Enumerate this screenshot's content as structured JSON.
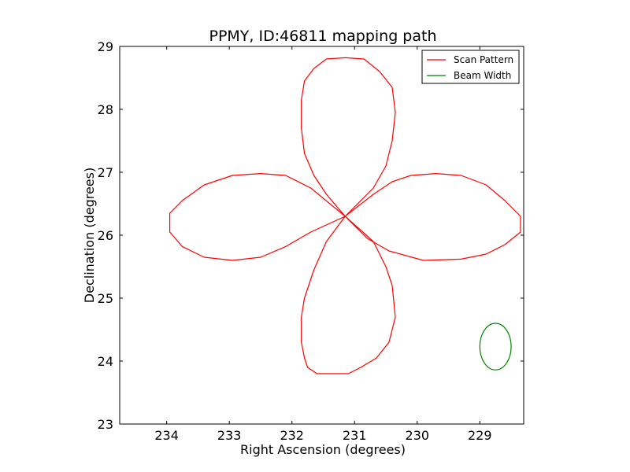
{
  "chart_data": {
    "type": "line",
    "title": "PPMY, ID:46811 mapping path",
    "xlabel": "Right Ascension (degrees)",
    "ylabel": "Declination (degrees)",
    "xlim": [
      234.75,
      228.3
    ],
    "ylim": [
      23,
      29
    ],
    "x_ticks": [
      234,
      233,
      232,
      231,
      230,
      229
    ],
    "y_ticks": [
      23,
      24,
      25,
      26,
      27,
      28,
      29
    ],
    "x_tick_labels": [
      "234",
      "233",
      "232",
      "231",
      "230",
      "229"
    ],
    "y_tick_labels": [
      "23",
      "24",
      "25",
      "26",
      "27",
      "28",
      "29"
    ],
    "grid": false,
    "legend_position": "top-right",
    "series": [
      {
        "name": "Scan Pattern",
        "color": "#ff0000",
        "x": [
          231.15,
          231.45,
          231.65,
          231.8,
          231.85,
          231.85,
          231.8,
          231.75,
          231.6,
          231.3,
          231.1,
          230.9,
          230.65,
          230.45,
          230.35,
          230.4,
          230.5,
          230.7,
          231.15,
          230.7,
          230.4,
          230.1,
          229.7,
          229.3,
          228.9,
          228.6,
          228.35,
          228.35,
          228.6,
          228.9,
          229.3,
          229.9,
          230.45,
          230.8,
          231.15,
          231.45,
          231.65,
          231.8,
          231.85,
          231.85,
          231.8,
          231.65,
          231.45,
          231.15,
          230.85,
          230.6,
          230.4,
          230.35,
          230.4,
          230.5,
          230.7,
          231.15,
          231.7,
          232.1,
          232.5,
          232.95,
          233.4,
          233.75,
          233.95,
          233.95,
          233.75,
          233.4,
          232.95,
          232.5,
          232.1,
          231.7,
          231.15
        ],
        "y": [
          26.3,
          25.9,
          25.45,
          25.0,
          24.7,
          24.3,
          24.05,
          23.9,
          23.8,
          23.8,
          23.8,
          23.9,
          24.05,
          24.3,
          24.7,
          25.2,
          25.5,
          25.9,
          26.3,
          26.65,
          26.85,
          26.95,
          26.98,
          26.95,
          26.8,
          26.55,
          26.3,
          26.05,
          25.85,
          25.7,
          25.62,
          25.6,
          25.75,
          25.95,
          26.3,
          26.65,
          26.95,
          27.3,
          27.7,
          28.15,
          28.45,
          28.65,
          28.8,
          28.82,
          28.8,
          28.6,
          28.35,
          27.95,
          27.5,
          27.1,
          26.75,
          26.3,
          26.75,
          26.95,
          26.98,
          26.95,
          26.8,
          26.55,
          26.35,
          26.05,
          25.82,
          25.65,
          25.6,
          25.65,
          25.82,
          26.05,
          26.3
        ]
      },
      {
        "name": "Beam Width",
        "color": "#008000",
        "center": [
          228.75,
          24.23
        ],
        "radius_x": 0.25,
        "radius_y": 0.37
      }
    ]
  }
}
